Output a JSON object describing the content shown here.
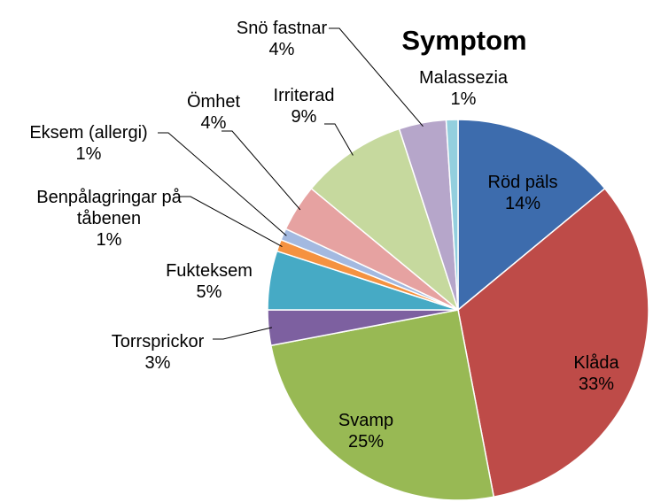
{
  "chart_data": {
    "type": "pie",
    "title": "Symptom",
    "categories": [
      "Röd päls",
      "Klåda",
      "Svamp",
      "Torrsprickor",
      "Fukteksem",
      "Benpålagringar på tåbenen",
      "Eksem (allergi)",
      "Ömhet",
      "Irriterad",
      "Snö fastnar",
      "Malassezia"
    ],
    "values": [
      14,
      33,
      25,
      3,
      5,
      1,
      1,
      4,
      9,
      4,
      1
    ],
    "value_labels": [
      "14%",
      "33%",
      "25%",
      "3%",
      "5%",
      "1%",
      "1%",
      "4%",
      "9%",
      "4%",
      "1%"
    ],
    "colors": [
      "#3d6cad",
      "#be4b48",
      "#98b954",
      "#7d60a0",
      "#46aac5",
      "#f59240",
      "#a3b9e0",
      "#e6a2a1",
      "#c6d99e",
      "#b6a6ca",
      "#93cfde"
    ]
  }
}
